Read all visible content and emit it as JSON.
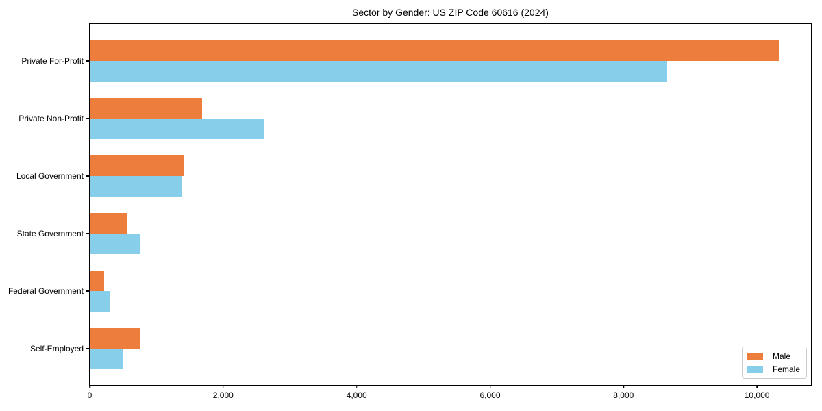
{
  "title": "Sector by Gender: US ZIP Code 60616 (2024)",
  "chart_data": {
    "type": "bar",
    "orientation": "horizontal",
    "title": "Sector by Gender: US ZIP Code 60616 (2024)",
    "xlabel": "",
    "ylabel": "",
    "categories": [
      "Private For-Profit",
      "Private Non-Profit",
      "Local Government",
      "State Government",
      "Federal Government",
      "Self-Employed"
    ],
    "series": [
      {
        "name": "Male",
        "color": "#EC7D3C",
        "values": [
          10330,
          1680,
          1420,
          550,
          220,
          760
        ]
      },
      {
        "name": "Female",
        "color": "#87CEEB",
        "values": [
          8650,
          2620,
          1380,
          750,
          310,
          500
        ]
      }
    ],
    "xlim": [
      0,
      10830
    ],
    "x_ticks": [
      0,
      2000,
      4000,
      6000,
      8000,
      10000
    ],
    "x_tick_labels": [
      "0",
      "2,000",
      "4,000",
      "6,000",
      "8,000",
      "10,000"
    ],
    "grid": false,
    "legend_position": "lower right"
  }
}
